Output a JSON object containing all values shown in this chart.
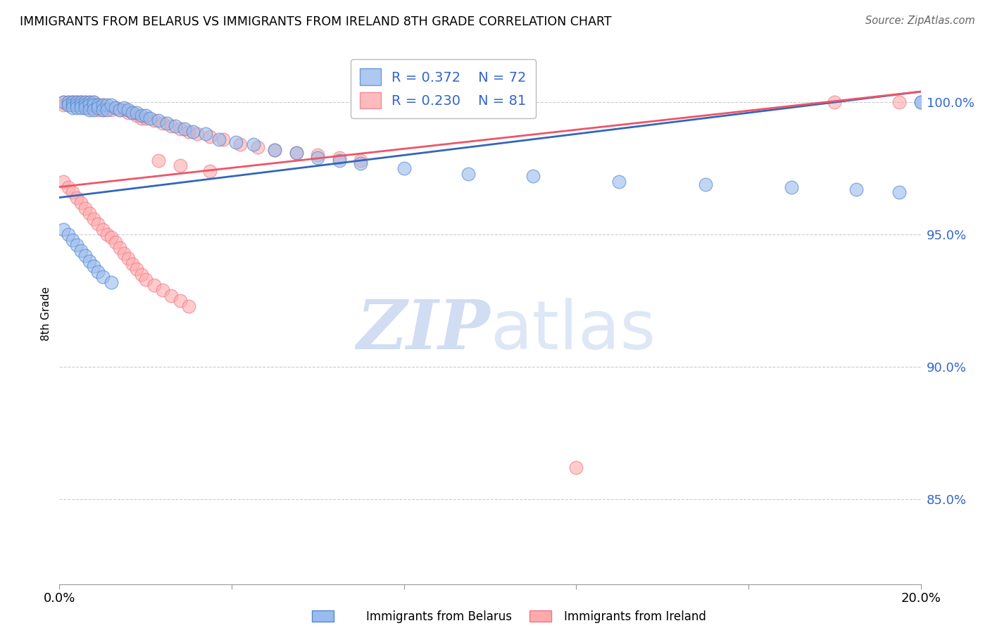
{
  "title": "IMMIGRANTS FROM BELARUS VS IMMIGRANTS FROM IRELAND 8TH GRADE CORRELATION CHART",
  "source": "Source: ZipAtlas.com",
  "ylabel": "8th Grade",
  "ylabel_ticks": [
    "100.0%",
    "95.0%",
    "90.0%",
    "85.0%"
  ],
  "ylabel_values": [
    1.0,
    0.95,
    0.9,
    0.85
  ],
  "xmin": 0.0,
  "xmax": 0.2,
  "ymin": 0.818,
  "ymax": 1.022,
  "legend_blue_r": "R = 0.372",
  "legend_blue_n": "N = 72",
  "legend_pink_r": "R = 0.230",
  "legend_pink_n": "N = 81",
  "legend_label_blue": "Immigrants from Belarus",
  "legend_label_pink": "Immigrants from Ireland",
  "blue_color": "#99BBEE",
  "pink_color": "#FFAAAA",
  "blue_edge": "#5588CC",
  "pink_edge": "#EE7788",
  "trendline_blue": "#3366BB",
  "trendline_pink": "#EE5566",
  "blue_trend_x": [
    0.0,
    0.2
  ],
  "blue_trend_y": [
    0.964,
    1.004
  ],
  "pink_trend_x": [
    0.0,
    0.2
  ],
  "pink_trend_y": [
    0.968,
    1.004
  ],
  "blue_x": [
    0.001,
    0.002,
    0.002,
    0.003,
    0.003,
    0.003,
    0.004,
    0.004,
    0.004,
    0.005,
    0.005,
    0.005,
    0.006,
    0.006,
    0.006,
    0.007,
    0.007,
    0.007,
    0.008,
    0.008,
    0.008,
    0.009,
    0.009,
    0.01,
    0.01,
    0.011,
    0.011,
    0.012,
    0.013,
    0.014,
    0.015,
    0.016,
    0.017,
    0.018,
    0.019,
    0.02,
    0.021,
    0.023,
    0.025,
    0.027,
    0.029,
    0.031,
    0.034,
    0.037,
    0.041,
    0.045,
    0.05,
    0.055,
    0.06,
    0.065,
    0.07,
    0.08,
    0.095,
    0.11,
    0.13,
    0.15,
    0.17,
    0.185,
    0.195,
    0.2,
    0.001,
    0.002,
    0.003,
    0.004,
    0.005,
    0.006,
    0.007,
    0.008,
    0.009,
    0.01,
    0.012,
    0.2
  ],
  "blue_y": [
    1.0,
    1.0,
    0.999,
    1.0,
    0.999,
    0.998,
    1.0,
    0.999,
    0.998,
    1.0,
    0.999,
    0.998,
    1.0,
    0.999,
    0.998,
    1.0,
    0.999,
    0.997,
    1.0,
    0.999,
    0.997,
    0.999,
    0.998,
    0.999,
    0.997,
    0.999,
    0.997,
    0.999,
    0.998,
    0.997,
    0.998,
    0.997,
    0.996,
    0.996,
    0.995,
    0.995,
    0.994,
    0.993,
    0.992,
    0.991,
    0.99,
    0.989,
    0.988,
    0.986,
    0.985,
    0.984,
    0.982,
    0.981,
    0.979,
    0.978,
    0.977,
    0.975,
    0.973,
    0.972,
    0.97,
    0.969,
    0.968,
    0.967,
    0.966,
    1.0,
    0.952,
    0.95,
    0.948,
    0.946,
    0.944,
    0.942,
    0.94,
    0.938,
    0.936,
    0.934,
    0.932,
    1.0
  ],
  "pink_x": [
    0.001,
    0.001,
    0.002,
    0.002,
    0.003,
    0.003,
    0.003,
    0.004,
    0.004,
    0.004,
    0.005,
    0.005,
    0.005,
    0.006,
    0.006,
    0.006,
    0.007,
    0.007,
    0.007,
    0.008,
    0.008,
    0.009,
    0.009,
    0.01,
    0.01,
    0.011,
    0.012,
    0.013,
    0.014,
    0.015,
    0.016,
    0.017,
    0.018,
    0.019,
    0.02,
    0.022,
    0.024,
    0.026,
    0.028,
    0.03,
    0.032,
    0.035,
    0.038,
    0.042,
    0.046,
    0.05,
    0.055,
    0.06,
    0.065,
    0.07,
    0.001,
    0.002,
    0.003,
    0.004,
    0.005,
    0.006,
    0.007,
    0.008,
    0.009,
    0.01,
    0.011,
    0.012,
    0.013,
    0.014,
    0.015,
    0.016,
    0.017,
    0.018,
    0.019,
    0.02,
    0.022,
    0.024,
    0.026,
    0.028,
    0.03,
    0.18,
    0.195,
    0.023,
    0.028,
    0.035,
    0.12
  ],
  "pink_y": [
    1.0,
    0.999,
    1.0,
    0.999,
    1.0,
    1.0,
    0.999,
    1.0,
    1.0,
    0.999,
    1.0,
    1.0,
    0.999,
    1.0,
    0.999,
    0.998,
    1.0,
    0.999,
    0.998,
    1.0,
    0.998,
    0.999,
    0.997,
    0.999,
    0.997,
    0.998,
    0.997,
    0.998,
    0.997,
    0.997,
    0.996,
    0.996,
    0.995,
    0.994,
    0.994,
    0.993,
    0.992,
    0.991,
    0.99,
    0.989,
    0.988,
    0.987,
    0.986,
    0.984,
    0.983,
    0.982,
    0.981,
    0.98,
    0.979,
    0.978,
    0.97,
    0.968,
    0.966,
    0.964,
    0.962,
    0.96,
    0.958,
    0.956,
    0.954,
    0.952,
    0.95,
    0.949,
    0.947,
    0.945,
    0.943,
    0.941,
    0.939,
    0.937,
    0.935,
    0.933,
    0.931,
    0.929,
    0.927,
    0.925,
    0.923,
    1.0,
    1.0,
    0.978,
    0.976,
    0.974,
    0.862
  ]
}
